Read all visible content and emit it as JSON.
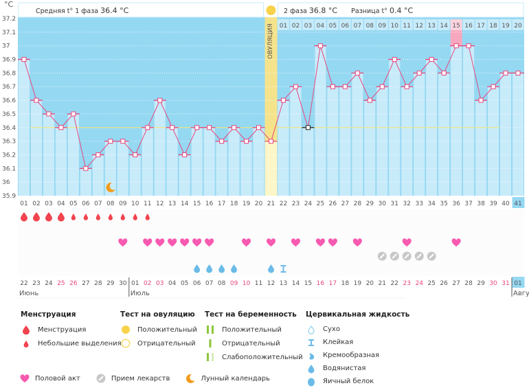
{
  "header": {
    "y_unit": "°C",
    "phase1_avg_label": "Средняя t° 1 фаза",
    "phase1_avg_value": "36.4 °C",
    "phase2_avg_label": "2 фаза",
    "phase2_avg_value": "36.8 °C",
    "diff_label": "Разница t°",
    "diff_value": "0.4 °C",
    "ovulation_label": "ОВУЛЯЦИЯ"
  },
  "chart_data": {
    "type": "line",
    "title": "",
    "ylabel": "°C",
    "ylim": [
      35.9,
      37.2
    ],
    "yticks": [
      "37.2",
      "37.1",
      "37",
      "36.9",
      "36.8",
      "36.7",
      "36.6",
      "36.5",
      "36.4",
      "36.3",
      "36.2",
      "36.1",
      "36",
      "35.9"
    ],
    "cover_line": 36.4,
    "ovulation_day": 21,
    "current_day": 41,
    "highlight_phase2_day": 15,
    "cycle_days": [
      "01",
      "02",
      "03",
      "04",
      "05",
      "06",
      "07",
      "08",
      "09",
      "10",
      "11",
      "12",
      "13",
      "14",
      "15",
      "16",
      "17",
      "18",
      "19",
      "20",
      "21",
      "22",
      "23",
      "24",
      "25",
      "26",
      "27",
      "28",
      "29",
      "30",
      "31",
      "32",
      "33",
      "34",
      "35",
      "36",
      "37",
      "38",
      "39",
      "40",
      "41"
    ],
    "phase2_days": [
      "01",
      "02",
      "03",
      "04",
      "05",
      "06",
      "07",
      "08",
      "09",
      "10",
      "11",
      "12",
      "13",
      "14",
      "15",
      "16",
      "17",
      "18",
      "19",
      "20"
    ],
    "temperatures": [
      36.9,
      36.6,
      36.5,
      36.4,
      36.5,
      36.1,
      36.2,
      36.3,
      36.3,
      36.2,
      36.4,
      36.6,
      36.4,
      36.2,
      36.4,
      36.4,
      36.3,
      36.4,
      36.3,
      36.4,
      36.3,
      36.6,
      36.7,
      36.4,
      37.0,
      36.7,
      36.7,
      36.8,
      36.6,
      36.7,
      36.9,
      36.7,
      36.8,
      36.9,
      36.8,
      37.0,
      37.0,
      36.6,
      36.7,
      36.8,
      36.8
    ],
    "calendar_dates": [
      "22",
      "23",
      "24",
      "25",
      "26",
      "27",
      "28",
      "29",
      "30",
      "01",
      "02",
      "03",
      "04",
      "05",
      "06",
      "07",
      "08",
      "09",
      "10",
      "11",
      "12",
      "13",
      "14",
      "15",
      "16",
      "17",
      "18",
      "19",
      "20",
      "21",
      "22",
      "23",
      "24",
      "25",
      "26",
      "27",
      "28",
      "29",
      "30",
      "31",
      "01"
    ],
    "weekend_days": [
      4,
      5,
      11,
      12,
      18,
      19,
      25,
      26,
      32,
      33,
      39,
      40
    ],
    "months": [
      {
        "label": "Июнь",
        "start_day": 1
      },
      {
        "label": "Июль",
        "start_day": 10
      },
      {
        "label": "Авгу",
        "start_day": 41
      }
    ],
    "menstruation_heavy_days": [
      1,
      2,
      3,
      4
    ],
    "menstruation_light_days": [
      5,
      6,
      7,
      8,
      9,
      10,
      11
    ],
    "intercourse_days": [
      9,
      11,
      12,
      13,
      14,
      15,
      16,
      19,
      21,
      23,
      25,
      26,
      28,
      32,
      36
    ],
    "medication_days": [
      30,
      31,
      32,
      33,
      34
    ],
    "watery_fluid_days": [
      15,
      16,
      17,
      18,
      21
    ],
    "sticky_fluid_days": [
      22
    ],
    "moon_day": 8
  },
  "legend": {
    "menstruation": {
      "title": "Менструация",
      "items": [
        "Менструация",
        "Небольшие выделения"
      ]
    },
    "ovulation_test": {
      "title": "Тест на овуляцию",
      "items": [
        "Положительный",
        "Отрицательный"
      ]
    },
    "pregnancy_test": {
      "title": "Тест на беременность",
      "items": [
        "Положительный",
        "Отрицательный",
        "Слабоположительный"
      ]
    },
    "cervical_fluid": {
      "title": "Цервикальная жидкость",
      "items": [
        "Сухо",
        "Клейкая",
        "Кремообразная",
        "Водянистая",
        "Яичный белок"
      ]
    },
    "other": [
      "Половой акт",
      "Прием лекарств",
      "Лунный календарь"
    ]
  },
  "colors": {
    "sky": "#95d8f2",
    "column": "#c8ebfa",
    "column_line": "#8fd0ee",
    "line": "#e8467c",
    "cover": "#f5e56a",
    "ovulation_col": "#f5e38c",
    "ovulation_col_low": "#fdf6c8",
    "highlight": "#f7a8bf",
    "blood": "#f2434e",
    "heart": "#f75ab0",
    "pill": "#c8c8c8",
    "drop": "#6bbbe8",
    "moon": "#f39a1a",
    "weekend": "#e8467c"
  }
}
